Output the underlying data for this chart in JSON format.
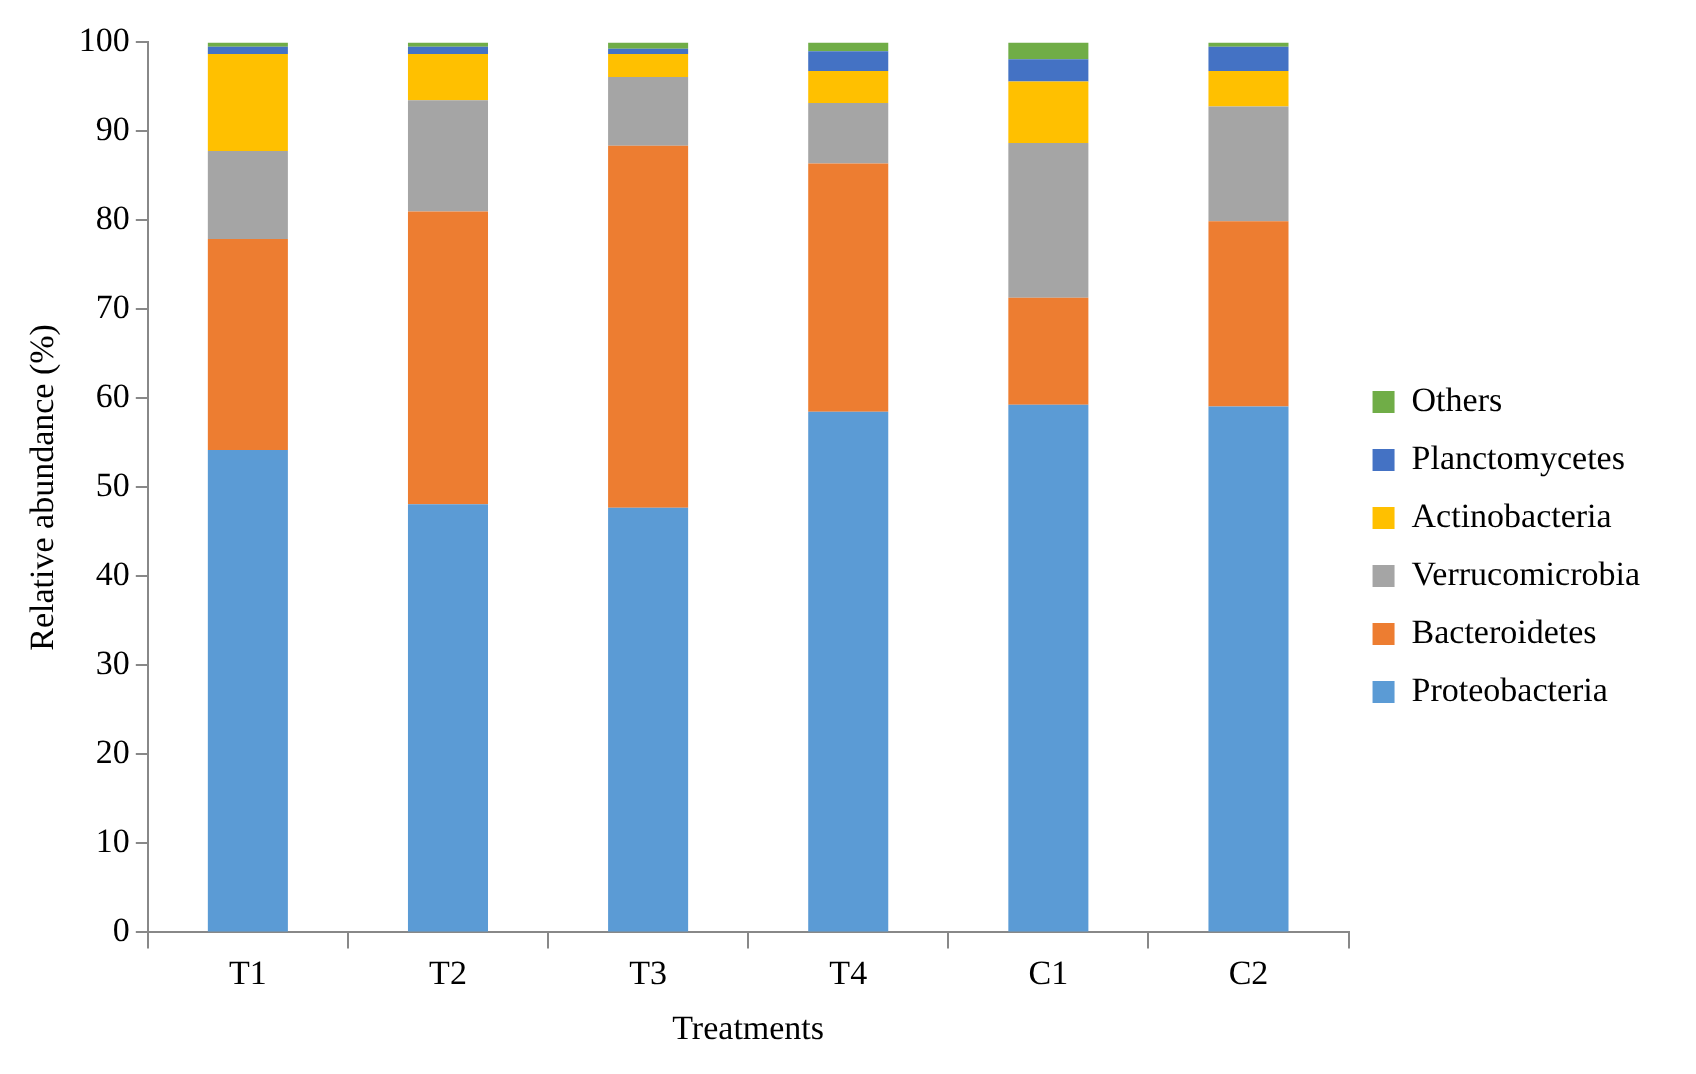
{
  "chart_data": {
    "type": "bar",
    "stacked": true,
    "xlabel": "Treatments",
    "ylabel": "Relative abundance (%)",
    "categories": [
      "T1",
      "T2",
      "T3",
      "T4",
      "C1",
      "C2"
    ],
    "series": [
      {
        "name": "Proteobacteria",
        "color": "#5b9bd5",
        "values": [
          54.2,
          48.1,
          47.7,
          58.5,
          59.3,
          59.1
        ]
      },
      {
        "name": "Bacteroidetes",
        "color": "#ed7d31",
        "values": [
          23.7,
          32.9,
          40.7,
          27.9,
          12.0,
          20.8
        ]
      },
      {
        "name": "Verrucomicrobia",
        "color": "#a5a5a5",
        "values": [
          9.9,
          12.5,
          7.7,
          6.8,
          17.4,
          12.9
        ]
      },
      {
        "name": "Actinobacteria",
        "color": "#ffc000",
        "values": [
          10.9,
          5.2,
          2.6,
          3.6,
          6.9,
          4.0
        ]
      },
      {
        "name": "Planctomycetes",
        "color": "#4472c4",
        "values": [
          0.8,
          0.8,
          0.6,
          2.2,
          2.5,
          2.7
        ]
      },
      {
        "name": "Others",
        "color": "#70ad47",
        "values": [
          0.5,
          0.5,
          0.7,
          1.0,
          1.9,
          0.5
        ]
      }
    ],
    "ylim": [
      0,
      100
    ],
    "yticks": [
      0,
      10,
      20,
      30,
      40,
      50,
      60,
      70,
      80,
      90,
      100
    ],
    "grid": false,
    "legend": "right"
  }
}
